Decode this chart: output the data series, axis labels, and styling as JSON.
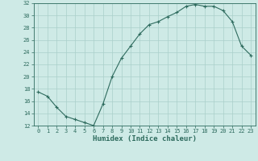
{
  "x": [
    0,
    1,
    2,
    3,
    4,
    5,
    6,
    7,
    8,
    9,
    10,
    11,
    12,
    13,
    14,
    15,
    16,
    17,
    18,
    19,
    20,
    21,
    22,
    23
  ],
  "y": [
    17.5,
    16.8,
    15.0,
    13.5,
    13.0,
    12.5,
    12.0,
    15.5,
    20.0,
    23.0,
    25.0,
    27.0,
    28.5,
    29.0,
    29.8,
    30.5,
    31.5,
    31.8,
    31.5,
    31.5,
    30.8,
    29.0,
    25.0,
    23.5
  ],
  "line_color": "#2e6b5e",
  "marker": "+",
  "marker_size": 3,
  "marker_linewidth": 0.8,
  "line_width": 0.8,
  "bg_color": "#ceeae6",
  "grid_color": "#aacfca",
  "xlabel": "Humidex (Indice chaleur)",
  "ylim": [
    12,
    32
  ],
  "xlim_min": -0.5,
  "xlim_max": 23.5,
  "yticks": [
    12,
    14,
    16,
    18,
    20,
    22,
    24,
    26,
    28,
    30,
    32
  ],
  "xticks": [
    0,
    1,
    2,
    3,
    4,
    5,
    6,
    7,
    8,
    9,
    10,
    11,
    12,
    13,
    14,
    15,
    16,
    17,
    18,
    19,
    20,
    21,
    22,
    23
  ],
  "tick_label_fontsize": 5,
  "xlabel_fontsize": 6.5,
  "tick_color": "#2e6b5e",
  "label_color": "#2e6b5e",
  "spine_color": "#2e6b5e"
}
